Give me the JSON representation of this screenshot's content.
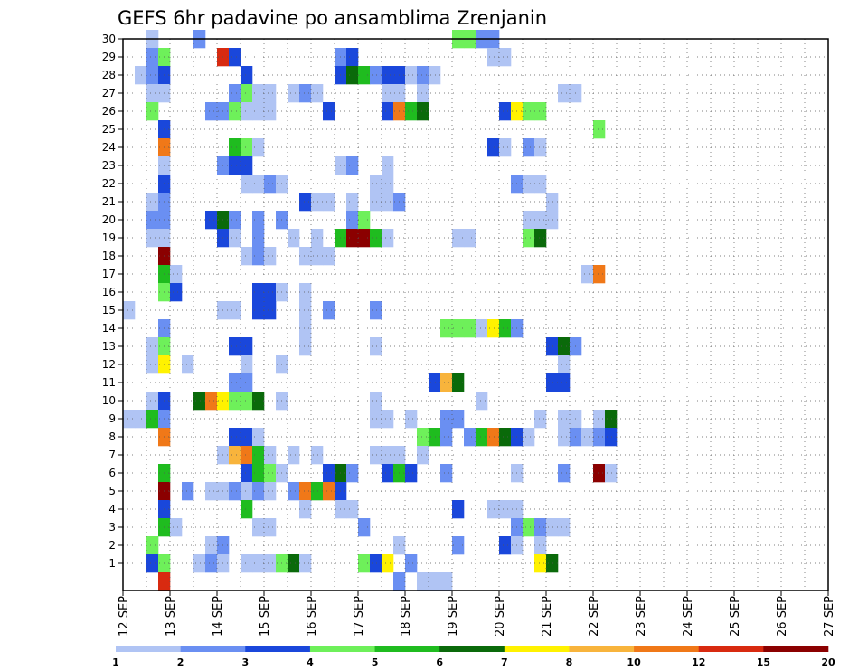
{
  "chart_data": {
    "type": "heatmap",
    "title": "GEFS 6hr padavine po ansamblima Zrenjanin",
    "x_ticks": [
      {
        "day": 12,
        "label": "12 SEP"
      },
      {
        "day": 13,
        "label": "13 SEP"
      },
      {
        "day": 14,
        "label": "14 SEP"
      },
      {
        "day": 15,
        "label": "15 SEP"
      },
      {
        "day": 16,
        "label": "16 SEP"
      },
      {
        "day": 17,
        "label": "17 SEP"
      },
      {
        "day": 18,
        "label": "18 SEP"
      },
      {
        "day": 19,
        "label": "19 SEP"
      },
      {
        "day": 20,
        "label": "20 SEP"
      },
      {
        "day": 21,
        "label": "21 SEP"
      },
      {
        "day": 22,
        "label": "22 SEP"
      },
      {
        "day": 23,
        "label": "23 SEP"
      },
      {
        "day": 24,
        "label": "24 SEP"
      },
      {
        "day": 25,
        "label": "25 SEP"
      },
      {
        "day": 26,
        "label": "26 SEP"
      },
      {
        "day": 27,
        "label": "27 SEP"
      }
    ],
    "y_ticks": [
      1,
      2,
      3,
      4,
      5,
      6,
      7,
      8,
      9,
      10,
      11,
      12,
      13,
      14,
      15,
      16,
      17,
      18,
      19,
      20,
      21,
      22,
      23,
      24,
      25,
      26,
      27,
      28,
      29,
      30
    ],
    "x_range_days": [
      12,
      27
    ],
    "y_range": [
      0,
      30
    ],
    "steps_per_day": 4,
    "grid": "dotted",
    "colorbar": {
      "placement": "bottom",
      "levels": [
        "1",
        "2",
        "3",
        "4",
        "5",
        "6",
        "7",
        "8",
        "10",
        "12",
        "15",
        "20"
      ],
      "colors": [
        "#b0c4f4",
        "#6a8ff2",
        "#1a47db",
        "#6ef05a",
        "#1fbc1f",
        "#0a6a0a",
        "#fff200",
        "#f8b43c",
        "#f07818",
        "#d82a10",
        "#8b0000"
      ]
    },
    "cells": [
      [
        30,
        2,
        0
      ],
      [
        30,
        6,
        1
      ],
      [
        30,
        28,
        3
      ],
      [
        30,
        29,
        3
      ],
      [
        30,
        30,
        1
      ],
      [
        30,
        31,
        1
      ],
      [
        29,
        2,
        1
      ],
      [
        29,
        3,
        3
      ],
      [
        29,
        8,
        9
      ],
      [
        29,
        9,
        2
      ],
      [
        29,
        18,
        1
      ],
      [
        29,
        19,
        2
      ],
      [
        29,
        31,
        0
      ],
      [
        29,
        32,
        0
      ],
      [
        28,
        1,
        0
      ],
      [
        28,
        2,
        1
      ],
      [
        28,
        3,
        2
      ],
      [
        28,
        10,
        2
      ],
      [
        28,
        18,
        2
      ],
      [
        28,
        19,
        5
      ],
      [
        28,
        20,
        4
      ],
      [
        28,
        21,
        1
      ],
      [
        28,
        22,
        2
      ],
      [
        28,
        23,
        2
      ],
      [
        28,
        24,
        0
      ],
      [
        28,
        25,
        1
      ],
      [
        28,
        26,
        0
      ],
      [
        27,
        2,
        0
      ],
      [
        27,
        3,
        0
      ],
      [
        27,
        9,
        1
      ],
      [
        27,
        10,
        3
      ],
      [
        27,
        11,
        0
      ],
      [
        27,
        12,
        0
      ],
      [
        27,
        14,
        0
      ],
      [
        27,
        15,
        1
      ],
      [
        27,
        16,
        0
      ],
      [
        27,
        22,
        0
      ],
      [
        27,
        23,
        0
      ],
      [
        27,
        25,
        0
      ],
      [
        27,
        37,
        0
      ],
      [
        27,
        38,
        0
      ],
      [
        26,
        2,
        3
      ],
      [
        26,
        7,
        1
      ],
      [
        26,
        8,
        1
      ],
      [
        26,
        9,
        3
      ],
      [
        26,
        10,
        0
      ],
      [
        26,
        11,
        0
      ],
      [
        26,
        12,
        0
      ],
      [
        26,
        17,
        2
      ],
      [
        26,
        22,
        2
      ],
      [
        26,
        23,
        8
      ],
      [
        26,
        24,
        4
      ],
      [
        26,
        25,
        5
      ],
      [
        26,
        32,
        2
      ],
      [
        26,
        33,
        6
      ],
      [
        26,
        34,
        3
      ],
      [
        26,
        35,
        3
      ],
      [
        25,
        3,
        2
      ],
      [
        25,
        40,
        3
      ],
      [
        24,
        3,
        8
      ],
      [
        24,
        9,
        4
      ],
      [
        24,
        10,
        3
      ],
      [
        24,
        11,
        0
      ],
      [
        24,
        31,
        2
      ],
      [
        24,
        32,
        0
      ],
      [
        24,
        34,
        1
      ],
      [
        24,
        35,
        0
      ],
      [
        23,
        3,
        0
      ],
      [
        23,
        8,
        1
      ],
      [
        23,
        9,
        2
      ],
      [
        23,
        10,
        2
      ],
      [
        23,
        18,
        0
      ],
      [
        23,
        19,
        1
      ],
      [
        23,
        22,
        0
      ],
      [
        22,
        3,
        2
      ],
      [
        22,
        10,
        0
      ],
      [
        22,
        11,
        0
      ],
      [
        22,
        12,
        1
      ],
      [
        22,
        13,
        0
      ],
      [
        22,
        21,
        0
      ],
      [
        22,
        22,
        0
      ],
      [
        22,
        33,
        1
      ],
      [
        22,
        34,
        0
      ],
      [
        22,
        35,
        0
      ],
      [
        21,
        2,
        0
      ],
      [
        21,
        3,
        1
      ],
      [
        21,
        15,
        2
      ],
      [
        21,
        16,
        0
      ],
      [
        21,
        17,
        0
      ],
      [
        21,
        19,
        0
      ],
      [
        21,
        21,
        0
      ],
      [
        21,
        22,
        0
      ],
      [
        21,
        23,
        1
      ],
      [
        21,
        36,
        0
      ],
      [
        20,
        2,
        1
      ],
      [
        20,
        3,
        1
      ],
      [
        20,
        7,
        2
      ],
      [
        20,
        8,
        5
      ],
      [
        20,
        9,
        1
      ],
      [
        20,
        11,
        1
      ],
      [
        20,
        13,
        1
      ],
      [
        20,
        19,
        1
      ],
      [
        20,
        20,
        3
      ],
      [
        20,
        34,
        0
      ],
      [
        20,
        35,
        0
      ],
      [
        20,
        36,
        0
      ],
      [
        19,
        2,
        0
      ],
      [
        19,
        3,
        0
      ],
      [
        19,
        8,
        2
      ],
      [
        19,
        9,
        0
      ],
      [
        19,
        11,
        1
      ],
      [
        19,
        14,
        0
      ],
      [
        19,
        16,
        0
      ],
      [
        19,
        18,
        4
      ],
      [
        19,
        19,
        10
      ],
      [
        19,
        20,
        10
      ],
      [
        19,
        21,
        4
      ],
      [
        19,
        22,
        0
      ],
      [
        19,
        28,
        0
      ],
      [
        19,
        29,
        0
      ],
      [
        19,
        34,
        3
      ],
      [
        19,
        35,
        5
      ],
      [
        18,
        3,
        10
      ],
      [
        18,
        10,
        0
      ],
      [
        18,
        11,
        1
      ],
      [
        18,
        12,
        0
      ],
      [
        18,
        15,
        0
      ],
      [
        18,
        16,
        0
      ],
      [
        18,
        17,
        0
      ],
      [
        17,
        3,
        4
      ],
      [
        17,
        4,
        0
      ],
      [
        17,
        39,
        0
      ],
      [
        17,
        40,
        8
      ],
      [
        16,
        3,
        3
      ],
      [
        16,
        4,
        2
      ],
      [
        16,
        11,
        2
      ],
      [
        16,
        12,
        2
      ],
      [
        16,
        13,
        0
      ],
      [
        16,
        15,
        0
      ],
      [
        15,
        0,
        0
      ],
      [
        15,
        8,
        0
      ],
      [
        15,
        9,
        0
      ],
      [
        15,
        11,
        2
      ],
      [
        15,
        12,
        2
      ],
      [
        15,
        15,
        0
      ],
      [
        15,
        17,
        1
      ],
      [
        15,
        21,
        1
      ],
      [
        14,
        3,
        1
      ],
      [
        14,
        15,
        0
      ],
      [
        14,
        27,
        3
      ],
      [
        14,
        28,
        3
      ],
      [
        14,
        29,
        3
      ],
      [
        14,
        30,
        0
      ],
      [
        14,
        31,
        6
      ],
      [
        14,
        32,
        4
      ],
      [
        14,
        33,
        1
      ],
      [
        13,
        2,
        0
      ],
      [
        13,
        3,
        3
      ],
      [
        13,
        9,
        2
      ],
      [
        13,
        10,
        2
      ],
      [
        13,
        15,
        0
      ],
      [
        13,
        21,
        0
      ],
      [
        13,
        36,
        2
      ],
      [
        13,
        37,
        5
      ],
      [
        13,
        38,
        1
      ],
      [
        12,
        2,
        0
      ],
      [
        12,
        3,
        6
      ],
      [
        12,
        5,
        0
      ],
      [
        12,
        10,
        0
      ],
      [
        12,
        13,
        0
      ],
      [
        12,
        37,
        0
      ],
      [
        11,
        9,
        1
      ],
      [
        11,
        10,
        1
      ],
      [
        11,
        26,
        2
      ],
      [
        11,
        27,
        7
      ],
      [
        11,
        28,
        5
      ],
      [
        11,
        36,
        2
      ],
      [
        11,
        37,
        2
      ],
      [
        10,
        2,
        0
      ],
      [
        10,
        3,
        2
      ],
      [
        10,
        6,
        5
      ],
      [
        10,
        7,
        8
      ],
      [
        10,
        8,
        6
      ],
      [
        10,
        9,
        3
      ],
      [
        10,
        10,
        3
      ],
      [
        10,
        11,
        5
      ],
      [
        10,
        13,
        0
      ],
      [
        10,
        21,
        0
      ],
      [
        10,
        30,
        0
      ],
      [
        9,
        0,
        0
      ],
      [
        9,
        1,
        0
      ],
      [
        9,
        2,
        4
      ],
      [
        9,
        3,
        1
      ],
      [
        9,
        21,
        0
      ],
      [
        9,
        22,
        0
      ],
      [
        9,
        24,
        0
      ],
      [
        9,
        27,
        1
      ],
      [
        9,
        28,
        1
      ],
      [
        9,
        35,
        0
      ],
      [
        9,
        37,
        0
      ],
      [
        9,
        38,
        0
      ],
      [
        9,
        40,
        0
      ],
      [
        9,
        41,
        5
      ],
      [
        8,
        3,
        8
      ],
      [
        8,
        9,
        2
      ],
      [
        8,
        10,
        2
      ],
      [
        8,
        11,
        0
      ],
      [
        8,
        25,
        3
      ],
      [
        8,
        26,
        4
      ],
      [
        8,
        27,
        1
      ],
      [
        8,
        29,
        1
      ],
      [
        8,
        30,
        4
      ],
      [
        8,
        31,
        8
      ],
      [
        8,
        32,
        5
      ],
      [
        8,
        33,
        2
      ],
      [
        8,
        34,
        0
      ],
      [
        8,
        37,
        0
      ],
      [
        8,
        38,
        1
      ],
      [
        8,
        39,
        0
      ],
      [
        8,
        40,
        1
      ],
      [
        8,
        41,
        2
      ],
      [
        7,
        8,
        0
      ],
      [
        7,
        9,
        7
      ],
      [
        7,
        10,
        8
      ],
      [
        7,
        11,
        4
      ],
      [
        7,
        12,
        0
      ],
      [
        7,
        14,
        0
      ],
      [
        7,
        16,
        0
      ],
      [
        7,
        21,
        0
      ],
      [
        7,
        22,
        0
      ],
      [
        7,
        23,
        0
      ],
      [
        7,
        25,
        0
      ],
      [
        6,
        3,
        4
      ],
      [
        6,
        10,
        2
      ],
      [
        6,
        11,
        4
      ],
      [
        6,
        12,
        3
      ],
      [
        6,
        13,
        0
      ],
      [
        6,
        17,
        2
      ],
      [
        6,
        18,
        5
      ],
      [
        6,
        19,
        1
      ],
      [
        6,
        22,
        2
      ],
      [
        6,
        23,
        4
      ],
      [
        6,
        24,
        2
      ],
      [
        6,
        27,
        1
      ],
      [
        6,
        33,
        0
      ],
      [
        6,
        37,
        1
      ],
      [
        6,
        40,
        10
      ],
      [
        6,
        41,
        0
      ],
      [
        5,
        3,
        10
      ],
      [
        5,
        5,
        1
      ],
      [
        5,
        7,
        0
      ],
      [
        5,
        8,
        0
      ],
      [
        5,
        9,
        1
      ],
      [
        5,
        10,
        0
      ],
      [
        5,
        11,
        1
      ],
      [
        5,
        12,
        0
      ],
      [
        5,
        14,
        1
      ],
      [
        5,
        15,
        8
      ],
      [
        5,
        16,
        4
      ],
      [
        5,
        17,
        8
      ],
      [
        5,
        18,
        2
      ],
      [
        4,
        3,
        2
      ],
      [
        4,
        10,
        4
      ],
      [
        4,
        15,
        0
      ],
      [
        4,
        18,
        0
      ],
      [
        4,
        19,
        0
      ],
      [
        4,
        28,
        2
      ],
      [
        4,
        31,
        0
      ],
      [
        4,
        32,
        0
      ],
      [
        4,
        33,
        0
      ],
      [
        3,
        3,
        4
      ],
      [
        3,
        4,
        0
      ],
      [
        3,
        11,
        0
      ],
      [
        3,
        12,
        0
      ],
      [
        3,
        20,
        1
      ],
      [
        3,
        33,
        1
      ],
      [
        3,
        34,
        3
      ],
      [
        3,
        35,
        1
      ],
      [
        3,
        36,
        0
      ],
      [
        3,
        37,
        0
      ],
      [
        2,
        2,
        3
      ],
      [
        2,
        7,
        0
      ],
      [
        2,
        8,
        1
      ],
      [
        2,
        23,
        0
      ],
      [
        2,
        28,
        1
      ],
      [
        2,
        32,
        2
      ],
      [
        2,
        33,
        0
      ],
      [
        2,
        35,
        0
      ],
      [
        1,
        2,
        2
      ],
      [
        1,
        3,
        3
      ],
      [
        1,
        6,
        0
      ],
      [
        1,
        7,
        1
      ],
      [
        1,
        8,
        0
      ],
      [
        1,
        10,
        0
      ],
      [
        1,
        11,
        0
      ],
      [
        1,
        12,
        0
      ],
      [
        1,
        13,
        3
      ],
      [
        1,
        14,
        5
      ],
      [
        1,
        15,
        0
      ],
      [
        1,
        20,
        3
      ],
      [
        1,
        21,
        2
      ],
      [
        1,
        22,
        6
      ],
      [
        1,
        24,
        1
      ],
      [
        1,
        35,
        6
      ],
      [
        1,
        36,
        5
      ],
      [
        0,
        3,
        9
      ],
      [
        0,
        23,
        1
      ],
      [
        0,
        25,
        0
      ],
      [
        0,
        26,
        0
      ],
      [
        0,
        27,
        0
      ]
    ]
  }
}
